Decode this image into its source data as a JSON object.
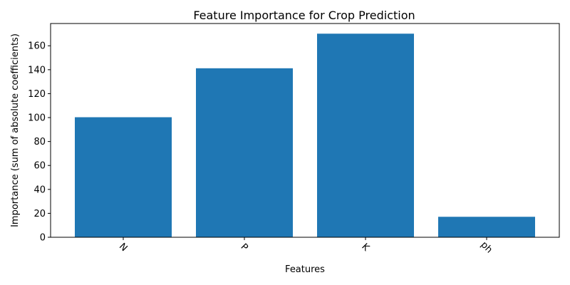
{
  "chart_data": {
    "type": "bar",
    "title": "Feature Importance for Crop Prediction",
    "xlabel": "Features",
    "ylabel": "Importance (sum of absolute coefficients)",
    "categories": [
      "N",
      "P",
      "K",
      "ph"
    ],
    "values": [
      100.3,
      141.2,
      170.1,
      17.1
    ],
    "ylim": [
      0,
      178.6
    ],
    "yticks": [
      0,
      20,
      40,
      60,
      80,
      100,
      120,
      140,
      160
    ],
    "ytick_labels": [
      "0",
      "20",
      "40",
      "60",
      "80",
      "100",
      "120",
      "140",
      "160"
    ],
    "bar_color": "#1f77b4",
    "grid": false,
    "xtick_rotation_deg": 45
  }
}
